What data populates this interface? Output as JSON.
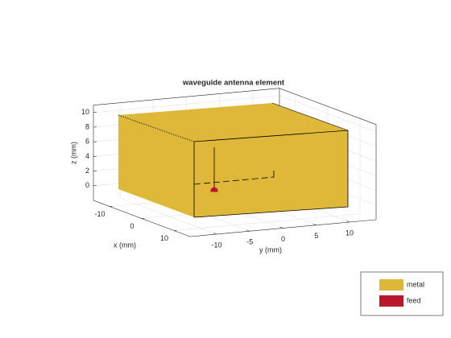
{
  "chart_data": {
    "type": "3d",
    "title": "waveguide antenna element",
    "x_label": "x (mm)",
    "y_label": "y (mm)",
    "z_label": "z (mm)",
    "xlim": [
      -15,
      15
    ],
    "ylim": [
      -14,
      14
    ],
    "zlim": [
      -2,
      11
    ],
    "xticks": [
      -10,
      0,
      10
    ],
    "yticks": [
      -10,
      -5,
      0,
      5,
      10
    ],
    "zticks": [
      0,
      2,
      4,
      6,
      8,
      10
    ],
    "grid": true,
    "legend": [
      {
        "name": "metal",
        "color": "#dfb83a"
      },
      {
        "name": "feed",
        "color": "#b8172b"
      }
    ],
    "legend_position": "lower right"
  }
}
